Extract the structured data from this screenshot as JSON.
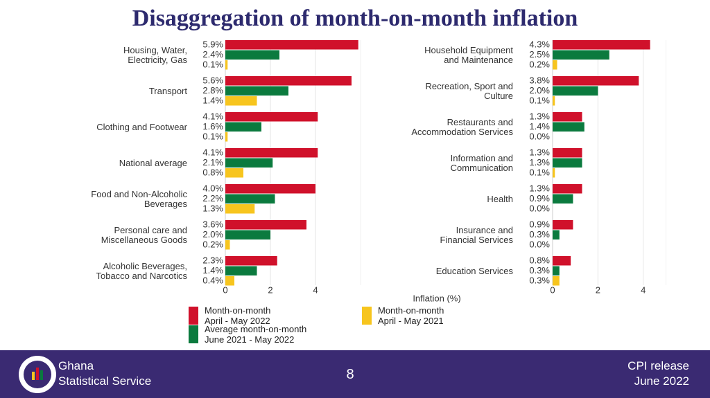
{
  "title": "Disaggregation of month-on-month inflation",
  "chart_data": [
    {
      "type": "bar",
      "orientation": "horizontal",
      "categories": [
        "Housing, Water,\nElectricity, Gas",
        "Transport",
        "Clothing and Footwear",
        "National average",
        "Food and Non-Alcoholic\nBeverages",
        "Personal care and\nMiscellaneous Goods",
        "Alcoholic Beverages,\nTobacco and Narcotics"
      ],
      "series": [
        {
          "name": "Month-on-month\nApril - May 2022",
          "color": "#d0112b",
          "values": [
            5.9,
            5.6,
            4.1,
            4.1,
            4.0,
            3.6,
            2.3
          ],
          "value_labels": [
            "5.9%",
            "5.6%",
            "4.1%",
            "4.1%",
            "4.0%",
            "3.6%",
            "2.3%"
          ]
        },
        {
          "name": "Average month-on-month\nJune 2021 - May 2022",
          "color": "#0b7a3e",
          "values": [
            2.4,
            2.8,
            1.6,
            2.1,
            2.2,
            2.0,
            1.4
          ],
          "value_labels": [
            "2.4%",
            "2.8%",
            "1.6%",
            "2.1%",
            "2.2%",
            "2.0%",
            "1.4%"
          ]
        },
        {
          "name": "Month-on-month\nApril - May 2021",
          "color": "#f7c51e",
          "values": [
            0.1,
            1.4,
            0.1,
            0.8,
            1.3,
            0.2,
            0.4
          ],
          "value_labels": [
            "0.1%",
            "1.4%",
            "0.1%",
            "0.8%",
            "1.3%",
            "0.2%",
            "0.4%"
          ]
        }
      ],
      "xlim": [
        0,
        6
      ],
      "xticks": [
        0,
        2,
        4
      ],
      "grid": true
    },
    {
      "type": "bar",
      "orientation": "horizontal",
      "categories": [
        "Household Equipment\nand Maintenance",
        "Recreation, Sport and\nCulture",
        "Restaurants and\nAccommodation Services",
        "Information and\nCommunication",
        "Health",
        "Insurance and\nFinancial Services",
        "Education Services"
      ],
      "series": [
        {
          "color": "#d0112b",
          "values": [
            4.3,
            3.8,
            1.3,
            1.3,
            1.3,
            0.9,
            0.8
          ],
          "value_labels": [
            "4.3%",
            "3.8%",
            "1.3%",
            "1.3%",
            "1.3%",
            "0.9%",
            "0.8%"
          ]
        },
        {
          "color": "#0b7a3e",
          "values": [
            2.5,
            2.0,
            1.4,
            1.3,
            0.9,
            0.3,
            0.3
          ],
          "value_labels": [
            "2.5%",
            "2.0%",
            "1.4%",
            "1.3%",
            "0.9%",
            "0.3%",
            "0.3%"
          ]
        },
        {
          "color": "#f7c51e",
          "values": [
            0.2,
            0.1,
            0.0,
            0.1,
            0.0,
            0.0,
            0.3
          ],
          "value_labels": [
            "0.2%",
            "0.1%",
            "0.0%",
            "0.1%",
            "0.0%",
            "0.0%",
            "0.3%"
          ]
        }
      ],
      "xlim": [
        0,
        5
      ],
      "xticks": [
        0,
        2,
        4
      ],
      "grid": true,
      "xlabel": "Inflation (%)"
    }
  ],
  "footer": {
    "org": "Ghana\nStatistical Service",
    "page": "8",
    "release": "CPI release\nJune  2022"
  }
}
